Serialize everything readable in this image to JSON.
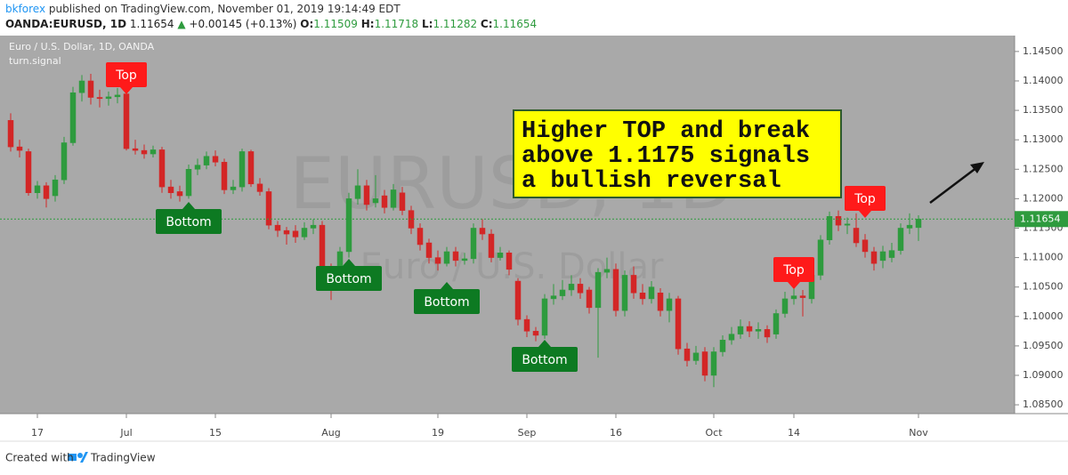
{
  "header": {
    "author": "bkforex",
    "published": "published on TradingView.com, November 01, 2019 19:14:49 EDT",
    "symbol": "OANDA:EURUSD, 1D",
    "change_arrow": "▲",
    "change": "+0.00145 (+0.13%)",
    "ohlc_labels": [
      "O:",
      "H:",
      "L:",
      "C:"
    ]
  },
  "footer": {
    "created_with": "Created with",
    "brand": "TradingView"
  },
  "chart_data": {
    "type": "candlestick",
    "title": "Euro / U.S. Dollar, 1D, OANDA",
    "indicator": "turn.signal",
    "watermark": [
      "EURUSD, 1D",
      "Euro / U.S. Dollar"
    ],
    "annotation": [
      "Higher TOP and break",
      "above 1.1175 signals",
      "a bullish reversal"
    ],
    "signals": [
      "Top",
      "Bottom",
      "Bottom",
      "Bottom",
      "Bottom",
      "Top",
      "Top"
    ],
    "up_color": "#2e9b3e",
    "down_color": "#d32626",
    "categories": [
      null,
      null,
      null,
      "17",
      null,
      null,
      null,
      null,
      null,
      null,
      null,
      null,
      null,
      "Jul",
      null,
      null,
      null,
      null,
      null,
      null,
      null,
      null,
      null,
      "15",
      null,
      null,
      null,
      null,
      null,
      null,
      null,
      null,
      null,
      null,
      null,
      null,
      "Aug",
      null,
      null,
      null,
      null,
      null,
      null,
      null,
      null,
      null,
      null,
      null,
      "19",
      null,
      null,
      null,
      null,
      null,
      null,
      null,
      null,
      null,
      "Sep",
      null,
      null,
      null,
      null,
      null,
      null,
      null,
      null,
      null,
      "16",
      null,
      null,
      null,
      null,
      null,
      null,
      null,
      null,
      null,
      null,
      "Oct",
      null,
      null,
      null,
      null,
      null,
      null,
      null,
      null,
      "14",
      null,
      null,
      null,
      null,
      null,
      null,
      null,
      null,
      null,
      null,
      null,
      null,
      null,
      "Nov"
    ],
    "open": [
      1.1333,
      1.1288,
      1.128,
      1.121,
      1.1222,
      1.1205,
      1.1232,
      1.1295,
      1.138,
      1.14,
      1.1372,
      1.137,
      1.1373,
      1.1378,
      1.1285,
      1.1282,
      1.1276,
      1.1283,
      1.122,
      1.1212,
      1.1205,
      1.125,
      1.1257,
      1.1272,
      1.1262,
      1.1215,
      1.122,
      1.128,
      1.1225,
      1.1212,
      1.1155,
      1.1146,
      1.1145,
      1.1135,
      1.115,
      1.1155,
      1.108,
      1.1078,
      1.111,
      1.12,
      1.1222,
      1.1193,
      1.1205,
      1.1185,
      1.121,
      1.118,
      1.115,
      1.1125,
      1.11,
      1.109,
      1.111,
      1.1095,
      1.1098,
      1.115,
      1.114,
      1.11,
      1.1108,
      1.106,
      1.0995,
      1.0975,
      1.0968,
      1.103,
      1.1035,
      1.1045,
      1.1055,
      1.1045,
      1.1015,
      1.1075,
      1.108,
      1.101,
      1.107,
      1.104,
      1.103,
      1.104,
      1.101,
      1.103,
      1.0945,
      1.0925,
      1.094,
      1.09,
      1.094,
      1.096,
      1.097,
      1.0983,
      1.0975,
      1.0978,
      1.097,
      1.1005,
      1.103,
      1.1035,
      1.103,
      1.107,
      1.113,
      1.117,
      1.1155,
      1.115,
      1.113,
      1.111,
      1.1095,
      1.11,
      1.1112,
      1.115,
      1.11509
    ],
    "high": [
      1.1345,
      1.13,
      1.1285,
      1.123,
      1.1228,
      1.124,
      1.1305,
      1.139,
      1.141,
      1.1412,
      1.1385,
      1.1382,
      1.1388,
      1.1393,
      1.13,
      1.1292,
      1.129,
      1.1288,
      1.1232,
      1.1222,
      1.1258,
      1.1268,
      1.128,
      1.1282,
      1.1268,
      1.1232,
      1.1285,
      1.1283,
      1.1235,
      1.1218,
      1.1162,
      1.1152,
      1.1155,
      1.116,
      1.1165,
      1.1162,
      1.109,
      1.1118,
      1.121,
      1.125,
      1.1232,
      1.124,
      1.1215,
      1.1225,
      1.122,
      1.1188,
      1.1158,
      1.1132,
      1.1112,
      1.1118,
      1.1118,
      1.1108,
      1.1158,
      1.1165,
      1.1148,
      1.1118,
      1.1112,
      1.1065,
      1.1002,
      1.0982,
      1.1038,
      1.1055,
      1.1062,
      1.107,
      1.1065,
      1.105,
      1.1082,
      1.11,
      1.109,
      1.1078,
      1.1085,
      1.1055,
      1.106,
      1.1048,
      1.104,
      1.1035,
      1.0955,
      1.095,
      1.0948,
      1.0948,
      1.0968,
      1.0982,
      1.0995,
      1.0992,
      1.099,
      1.0985,
      1.1012,
      1.1042,
      1.1048,
      1.1045,
      1.108,
      1.1138,
      1.1178,
      1.118,
      1.1168,
      1.1175,
      1.114,
      1.1118,
      1.112,
      1.1125,
      1.1158,
      1.1175,
      1.11718
    ],
    "low": [
      1.128,
      1.127,
      1.1205,
      1.12,
      1.1185,
      1.1195,
      1.1225,
      1.129,
      1.1365,
      1.136,
      1.1355,
      1.1358,
      1.1362,
      1.1282,
      1.1275,
      1.1268,
      1.127,
      1.121,
      1.12,
      1.1195,
      1.12,
      1.124,
      1.125,
      1.1255,
      1.1208,
      1.1208,
      1.1212,
      1.122,
      1.1205,
      1.1148,
      1.1135,
      1.1122,
      1.1125,
      1.113,
      1.114,
      1.107,
      1.1028,
      1.1065,
      1.11,
      1.119,
      1.118,
      1.1185,
      1.1175,
      1.118,
      1.1172,
      1.114,
      1.1112,
      1.109,
      1.1078,
      1.1085,
      1.1085,
      1.1088,
      1.109,
      1.113,
      1.1092,
      1.1095,
      1.107,
      1.0985,
      1.0965,
      1.0958,
      1.0962,
      1.102,
      1.1028,
      1.1035,
      1.103,
      1.1005,
      1.093,
      1.1065,
      1.1,
      1.1,
      1.103,
      1.102,
      1.1022,
      1.1,
      1.099,
      1.0935,
      1.0915,
      1.0918,
      1.089,
      1.088,
      1.0932,
      1.0952,
      1.0962,
      1.0965,
      1.0962,
      1.0955,
      1.0962,
      1.0998,
      1.102,
      1.1,
      1.1022,
      1.1062,
      1.1122,
      1.1145,
      1.114,
      1.1118,
      1.11,
      1.1078,
      1.1082,
      1.1092,
      1.1105,
      1.114,
      1.11282
    ],
    "close": [
      1.1288,
      1.1282,
      1.121,
      1.1222,
      1.12,
      1.1232,
      1.1295,
      1.138,
      1.14,
      1.1372,
      1.137,
      1.1373,
      1.1376,
      1.1285,
      1.1282,
      1.1276,
      1.1283,
      1.122,
      1.121,
      1.1205,
      1.125,
      1.1257,
      1.1272,
      1.1262,
      1.1215,
      1.122,
      1.128,
      1.1225,
      1.1212,
      1.1155,
      1.1146,
      1.114,
      1.1135,
      1.115,
      1.1155,
      1.1078,
      1.1075,
      1.111,
      1.12,
      1.1222,
      1.119,
      1.12,
      1.1185,
      1.1215,
      1.118,
      1.115,
      1.1122,
      1.11,
      1.109,
      1.111,
      1.1095,
      1.1098,
      1.115,
      1.114,
      1.11,
      1.1108,
      1.108,
      1.0995,
      1.0975,
      1.0968,
      1.103,
      1.1035,
      1.1045,
      1.1055,
      1.104,
      1.1015,
      1.1075,
      1.108,
      1.101,
      1.107,
      1.104,
      1.103,
      1.105,
      1.101,
      1.103,
      1.0945,
      1.0925,
      1.0938,
      1.09,
      1.094,
      1.096,
      1.097,
      1.0983,
      1.0975,
      1.0978,
      1.0965,
      1.1005,
      1.103,
      1.1035,
      1.1032,
      1.107,
      1.113,
      1.117,
      1.1155,
      1.1157,
      1.1125,
      1.111,
      1.109,
      1.111,
      1.1112,
      1.115,
      1.1155,
      1.11654
    ],
    "ylim": [
      1.0835,
      1.1477
    ],
    "yticks": [
      {
        "value": 1.085,
        "label": "1.08500"
      },
      {
        "value": 1.09,
        "label": "1.09000"
      },
      {
        "value": 1.095,
        "label": "1.09500"
      },
      {
        "value": 1.1,
        "label": "1.10000"
      },
      {
        "value": 1.105,
        "label": "1.10500"
      },
      {
        "value": 1.11,
        "label": "1.11000"
      },
      {
        "value": 1.115,
        "label": "1.11500"
      },
      {
        "value": 1.12,
        "label": "1.12000"
      },
      {
        "value": 1.125,
        "label": "1.12500"
      },
      {
        "value": 1.13,
        "label": "1.13000"
      },
      {
        "value": 1.135,
        "label": "1.13500"
      },
      {
        "value": 1.14,
        "label": "1.14000"
      },
      {
        "value": 1.145,
        "label": "1.14500"
      }
    ]
  }
}
